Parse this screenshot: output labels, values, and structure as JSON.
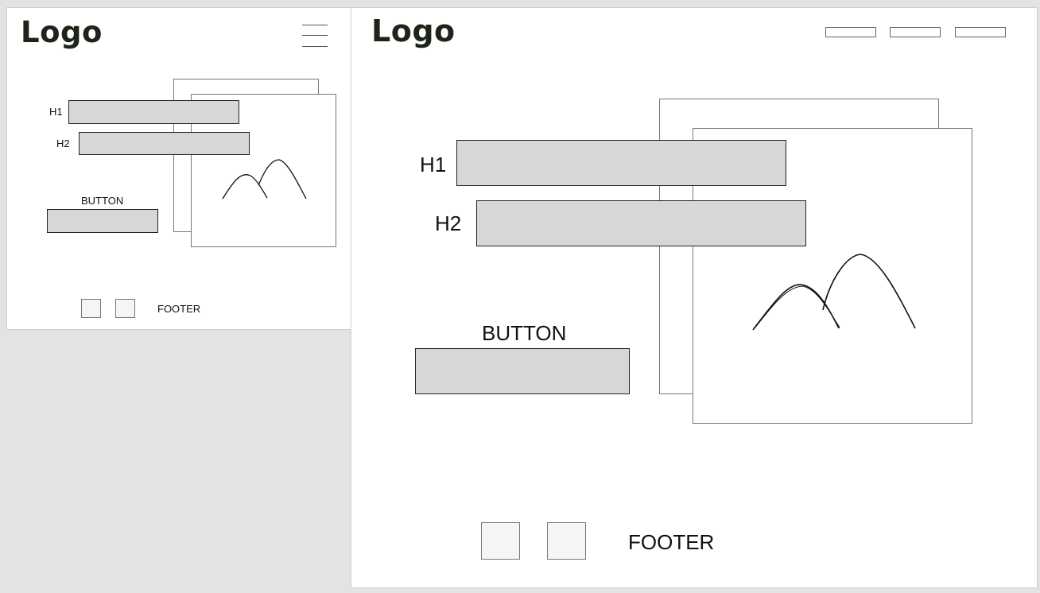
{
  "mobile": {
    "logo": "Logo",
    "menu_icon": "hamburger-menu-icon",
    "h1_label": "H1",
    "h2_label": "H2",
    "button_label": "BUTTON",
    "footer_label": "FOOTER",
    "image_icon": "mountain-image-icon"
  },
  "desktop": {
    "logo": "Logo",
    "nav_item_count_note": "",
    "h1_label": "H1",
    "h2_label": "H2",
    "button_label": "BUTTON",
    "footer_label": "FOOTER",
    "image_icon": "mountain-image-icon"
  },
  "colors": {
    "background": "#e3e3e3",
    "frame": "#ffffff",
    "placeholder_fill": "#d8d7d8",
    "logo": "#1e2418"
  }
}
